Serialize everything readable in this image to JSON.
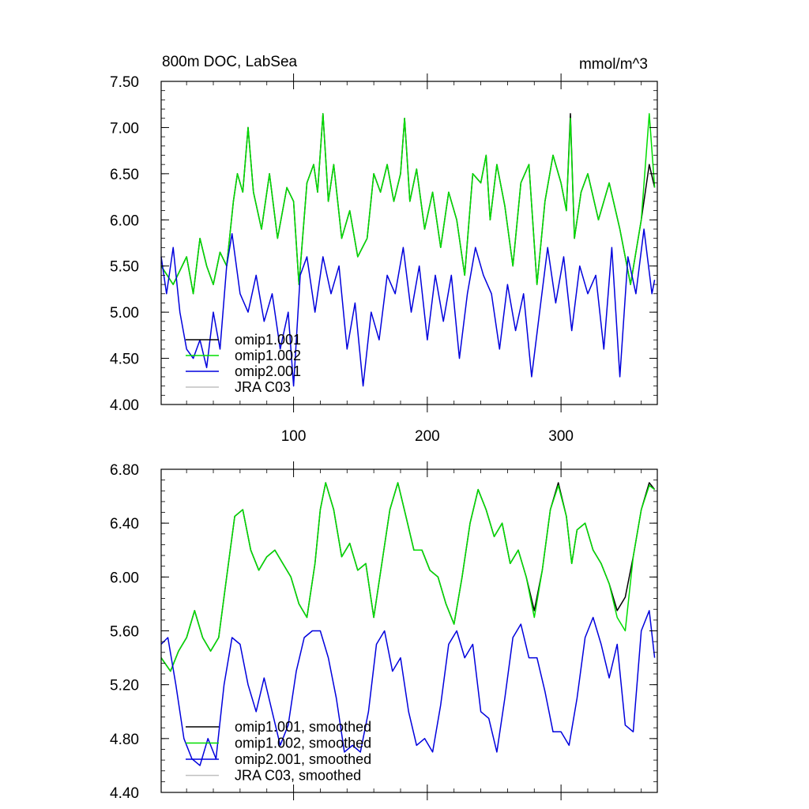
{
  "chart_data": [
    {
      "type": "line",
      "title": "800m DOC, LabSea",
      "units": "mmol/m^3",
      "xlim": [
        1,
        372
      ],
      "ylim": [
        4.0,
        7.5
      ],
      "x_ticks": [
        100,
        200,
        300
      ],
      "x_tick_labels": [
        "100",
        "200",
        "300"
      ],
      "y_ticks": [
        4.0,
        4.5,
        5.0,
        5.5,
        6.0,
        6.5,
        7.0,
        7.5
      ],
      "y_tick_labels": [
        "4.00",
        "4.50",
        "5.00",
        "5.50",
        "6.00",
        "6.50",
        "7.00",
        "7.50"
      ],
      "legend_position": "bottom-left",
      "series": [
        {
          "name": "omip1.001",
          "color": "#000000",
          "x": [
            1,
            10,
            20,
            25,
            30,
            35,
            40,
            45,
            50,
            55,
            58,
            62,
            66,
            70,
            76,
            82,
            88,
            95,
            100,
            104,
            110,
            115,
            118,
            122,
            126,
            130,
            136,
            142,
            148,
            155,
            160,
            165,
            170,
            175,
            180,
            183,
            187,
            192,
            198,
            204,
            210,
            216,
            222,
            228,
            234,
            240,
            244,
            247,
            252,
            258,
            264,
            270,
            276,
            282,
            288,
            294,
            300,
            304,
            307,
            310,
            315,
            320,
            328,
            336,
            344,
            352,
            360,
            366,
            370
          ],
          "values": [
            5.5,
            5.3,
            5.6,
            5.2,
            5.8,
            5.5,
            5.3,
            5.65,
            5.5,
            6.2,
            6.5,
            6.3,
            7.0,
            6.3,
            5.9,
            6.5,
            5.8,
            6.35,
            6.2,
            5.3,
            6.4,
            6.6,
            6.3,
            7.15,
            6.2,
            6.6,
            5.8,
            6.1,
            5.6,
            5.8,
            6.5,
            6.3,
            6.6,
            6.2,
            6.5,
            7.1,
            6.2,
            6.55,
            5.9,
            6.3,
            5.7,
            6.3,
            6.0,
            5.4,
            6.5,
            6.4,
            6.7,
            6.0,
            6.6,
            6.15,
            5.5,
            6.4,
            6.6,
            5.3,
            6.2,
            6.7,
            6.4,
            6.1,
            7.15,
            5.8,
            6.3,
            6.5,
            6.0,
            6.4,
            5.9,
            5.3,
            6.0,
            6.6,
            6.35
          ]
        },
        {
          "name": "omip1.002",
          "color": "#00dd00",
          "x": [
            1,
            10,
            20,
            25,
            30,
            35,
            40,
            45,
            50,
            55,
            58,
            62,
            66,
            70,
            76,
            82,
            88,
            95,
            100,
            104,
            110,
            115,
            118,
            122,
            126,
            130,
            136,
            142,
            148,
            155,
            160,
            165,
            170,
            175,
            180,
            183,
            187,
            192,
            198,
            204,
            210,
            216,
            222,
            228,
            234,
            240,
            244,
            247,
            252,
            258,
            264,
            270,
            276,
            282,
            288,
            294,
            300,
            304,
            307,
            310,
            315,
            320,
            328,
            336,
            344,
            352,
            360,
            366,
            370
          ],
          "values": [
            5.5,
            5.3,
            5.6,
            5.2,
            5.8,
            5.5,
            5.3,
            5.65,
            5.5,
            6.2,
            6.5,
            6.3,
            7.0,
            6.3,
            5.9,
            6.5,
            5.8,
            6.35,
            6.2,
            5.3,
            6.4,
            6.6,
            6.3,
            7.15,
            6.2,
            6.6,
            5.8,
            6.1,
            5.6,
            5.8,
            6.5,
            6.3,
            6.6,
            6.2,
            6.5,
            7.1,
            6.2,
            6.55,
            5.9,
            6.3,
            5.7,
            6.3,
            6.0,
            5.4,
            6.5,
            6.4,
            6.7,
            6.0,
            6.6,
            6.15,
            5.5,
            6.4,
            6.6,
            5.3,
            6.2,
            6.7,
            6.4,
            6.1,
            7.1,
            5.8,
            6.3,
            6.5,
            6.0,
            6.4,
            5.9,
            5.3,
            6.0,
            7.15,
            6.35
          ]
        },
        {
          "name": "omip2.001",
          "color": "#0000dd",
          "x": [
            1,
            5,
            10,
            15,
            20,
            25,
            30,
            35,
            40,
            45,
            50,
            54,
            60,
            66,
            72,
            78,
            84,
            90,
            96,
            100,
            105,
            110,
            116,
            122,
            128,
            134,
            140,
            146,
            152,
            158,
            164,
            170,
            176,
            182,
            188,
            194,
            200,
            206,
            212,
            218,
            224,
            230,
            236,
            242,
            248,
            254,
            260,
            266,
            272,
            278,
            284,
            290,
            296,
            302,
            308,
            314,
            320,
            326,
            332,
            338,
            344,
            350,
            356,
            362,
            368,
            370
          ],
          "values": [
            5.6,
            5.2,
            5.7,
            5.0,
            4.6,
            4.5,
            4.7,
            4.4,
            5.0,
            4.6,
            5.5,
            5.85,
            5.2,
            5.0,
            5.4,
            4.9,
            5.2,
            4.6,
            5.0,
            4.2,
            5.4,
            5.6,
            5.0,
            5.6,
            5.2,
            5.5,
            4.6,
            5.1,
            4.2,
            5.0,
            4.7,
            5.4,
            5.2,
            5.7,
            5.0,
            5.5,
            4.7,
            5.4,
            4.9,
            5.4,
            4.5,
            5.2,
            5.7,
            5.4,
            5.2,
            4.6,
            5.3,
            4.8,
            5.2,
            4.3,
            5.0,
            5.7,
            5.1,
            5.6,
            4.8,
            5.5,
            5.2,
            5.4,
            4.6,
            5.7,
            4.3,
            5.6,
            5.2,
            5.9,
            5.2,
            5.35
          ]
        },
        {
          "name": "JRA C03",
          "color": "#c0c0c0",
          "x": [],
          "values": []
        }
      ]
    },
    {
      "type": "line",
      "title": "",
      "xlim": [
        1,
        372
      ],
      "ylim": [
        4.4,
        6.8
      ],
      "x_ticks": [
        100,
        200,
        300
      ],
      "x_tick_labels": [
        "",
        "",
        ""
      ],
      "y_ticks": [
        4.4,
        4.8,
        5.2,
        5.6,
        6.0,
        6.4,
        6.8
      ],
      "y_tick_labels": [
        "4.40",
        "4.80",
        "5.20",
        "5.60",
        "6.00",
        "6.40",
        "6.80"
      ],
      "legend_position": "bottom-left",
      "series": [
        {
          "name": "omip1.001, smoothed",
          "color": "#000000",
          "x": [
            1,
            8,
            14,
            20,
            26,
            32,
            38,
            44,
            50,
            56,
            62,
            68,
            74,
            80,
            86,
            92,
            98,
            104,
            110,
            116,
            120,
            124,
            130,
            136,
            142,
            148,
            154,
            160,
            166,
            172,
            178,
            184,
            190,
            196,
            202,
            208,
            214,
            220,
            226,
            232,
            238,
            244,
            250,
            256,
            262,
            268,
            274,
            280,
            286,
            292,
            298,
            304,
            308,
            312,
            318,
            324,
            330,
            336,
            342,
            348,
            354,
            360,
            366,
            370
          ],
          "values": [
            5.4,
            5.3,
            5.45,
            5.55,
            5.75,
            5.55,
            5.45,
            5.55,
            6.0,
            6.45,
            6.5,
            6.2,
            6.05,
            6.15,
            6.2,
            6.1,
            6.0,
            5.8,
            5.7,
            6.1,
            6.5,
            6.7,
            6.5,
            6.15,
            6.25,
            6.05,
            6.1,
            5.7,
            6.1,
            6.5,
            6.7,
            6.45,
            6.2,
            6.2,
            6.05,
            6.0,
            5.8,
            5.65,
            6.0,
            6.4,
            6.65,
            6.5,
            6.3,
            6.4,
            6.1,
            6.2,
            6.0,
            5.75,
            6.05,
            6.5,
            6.7,
            6.45,
            6.1,
            6.35,
            6.4,
            6.2,
            6.1,
            5.95,
            5.75,
            5.85,
            6.15,
            6.5,
            6.7,
            6.65
          ]
        },
        {
          "name": "omip1.002, smoothed",
          "color": "#00dd00",
          "x": [
            1,
            8,
            14,
            20,
            26,
            32,
            38,
            44,
            50,
            56,
            62,
            68,
            74,
            80,
            86,
            92,
            98,
            104,
            110,
            116,
            120,
            124,
            130,
            136,
            142,
            148,
            154,
            160,
            166,
            172,
            178,
            184,
            190,
            196,
            202,
            208,
            214,
            220,
            226,
            232,
            238,
            244,
            250,
            256,
            262,
            268,
            274,
            280,
            286,
            292,
            298,
            304,
            308,
            312,
            318,
            324,
            330,
            336,
            342,
            348,
            354,
            360,
            366,
            370
          ],
          "values": [
            5.4,
            5.3,
            5.45,
            5.55,
            5.75,
            5.55,
            5.45,
            5.55,
            6.0,
            6.45,
            6.5,
            6.2,
            6.05,
            6.15,
            6.2,
            6.1,
            6.0,
            5.8,
            5.7,
            6.1,
            6.5,
            6.7,
            6.5,
            6.15,
            6.25,
            6.05,
            6.1,
            5.7,
            6.1,
            6.5,
            6.7,
            6.45,
            6.2,
            6.2,
            6.05,
            6.0,
            5.8,
            5.65,
            6.0,
            6.4,
            6.65,
            6.5,
            6.3,
            6.4,
            6.1,
            6.2,
            6.0,
            5.7,
            6.05,
            6.5,
            6.68,
            6.45,
            6.1,
            6.35,
            6.4,
            6.2,
            6.1,
            5.95,
            5.7,
            5.6,
            6.15,
            6.5,
            6.68,
            6.65
          ]
        },
        {
          "name": "omip2.001, smoothed",
          "color": "#0000dd",
          "x": [
            1,
            6,
            12,
            18,
            24,
            30,
            36,
            42,
            48,
            54,
            60,
            66,
            72,
            78,
            84,
            90,
            96,
            102,
            108,
            114,
            120,
            126,
            132,
            138,
            144,
            150,
            156,
            162,
            168,
            174,
            180,
            186,
            192,
            198,
            204,
            210,
            216,
            222,
            228,
            234,
            240,
            246,
            252,
            258,
            264,
            270,
            276,
            282,
            288,
            294,
            300,
            306,
            312,
            318,
            324,
            330,
            336,
            342,
            348,
            354,
            360,
            366,
            370
          ],
          "values": [
            5.5,
            5.55,
            5.2,
            4.8,
            4.65,
            4.6,
            4.8,
            4.65,
            5.2,
            5.55,
            5.5,
            5.2,
            5.0,
            5.25,
            5.0,
            4.75,
            4.9,
            5.3,
            5.55,
            5.6,
            5.6,
            5.4,
            5.1,
            4.7,
            4.75,
            4.7,
            5.0,
            5.5,
            5.6,
            5.3,
            5.4,
            5.0,
            4.75,
            4.8,
            4.7,
            5.05,
            5.5,
            5.6,
            5.4,
            5.5,
            5.0,
            4.95,
            4.7,
            5.1,
            5.55,
            5.65,
            5.4,
            5.4,
            5.15,
            4.85,
            4.85,
            4.75,
            5.1,
            5.55,
            5.7,
            5.5,
            5.25,
            5.5,
            4.9,
            4.85,
            5.6,
            5.75,
            5.4
          ]
        },
        {
          "name": "JRA C03, smoothed",
          "color": "#c0c0c0",
          "x": [],
          "values": []
        }
      ]
    }
  ]
}
